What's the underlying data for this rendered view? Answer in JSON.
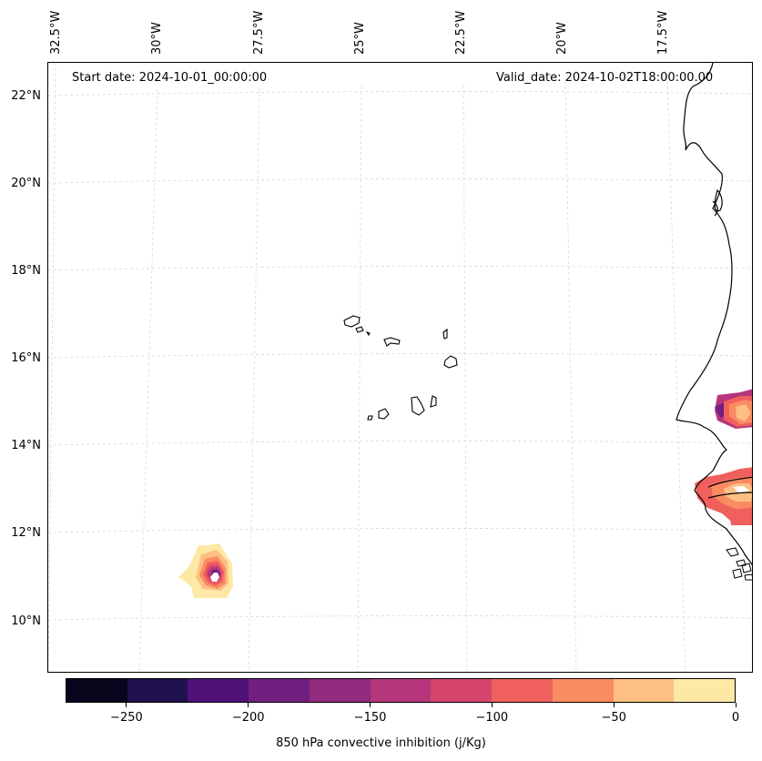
{
  "header": {
    "start_date": "Start date: 2024-10-01_00:00:00",
    "valid_date": "Valid_date: 2024-10-02T18:00:00.00"
  },
  "axes": {
    "lon_labels": [
      "32.5°W",
      "30°W",
      "27.5°W",
      "25°W",
      "22.5°W",
      "20°W",
      "17.5°W"
    ],
    "lat_labels": [
      "22°N",
      "20°N",
      "18°N",
      "16°N",
      "14°N",
      "12°N",
      "10°N"
    ]
  },
  "colorbar": {
    "label": "850 hPa convective inhibition (j/Kg)",
    "tick_labels": [
      "−250",
      "−200",
      "−150",
      "−100",
      "−50",
      "0"
    ],
    "tick_values": [
      -250,
      -200,
      -150,
      -100,
      -50,
      0
    ],
    "range": [
      -275,
      0
    ],
    "colors": [
      "#07061c",
      "#21114e",
      "#4f1178",
      "#711f81",
      "#922a80",
      "#b5367a",
      "#d6456c",
      "#f0605d",
      "#fa8c61",
      "#febf84",
      "#fde8a5"
    ]
  },
  "map": {
    "land_color": "#ffffff",
    "coast_color": "#000000",
    "grid_color": "#cccccc"
  }
}
